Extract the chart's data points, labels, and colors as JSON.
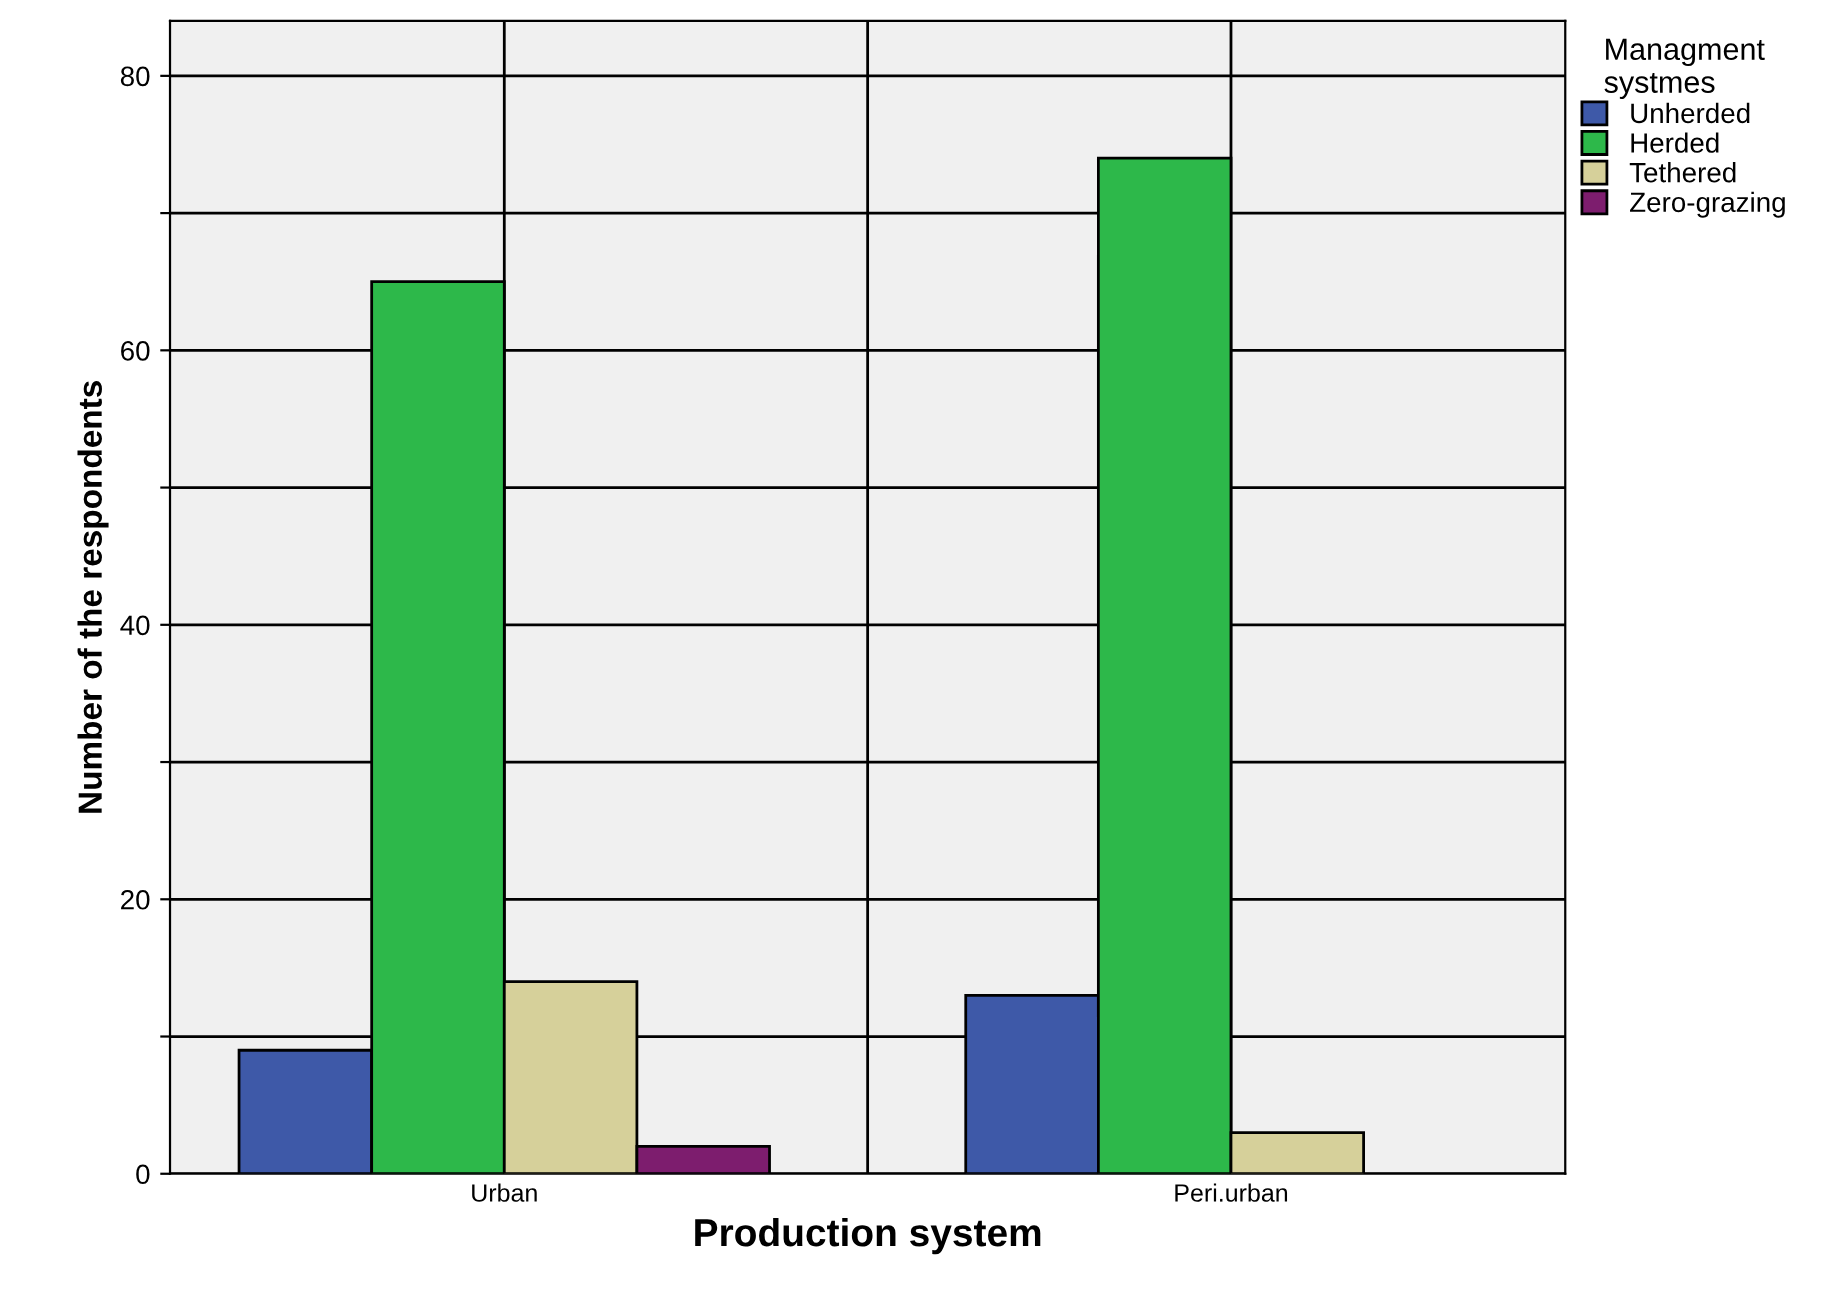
{
  "chart_data": {
    "type": "bar",
    "xlabel": "Production system",
    "ylabel": "Number of the respondents",
    "legend_title": "Managment systmes",
    "categories": [
      "Urban",
      "Peri.urban"
    ],
    "series": [
      {
        "name": "Unherded",
        "color": "#3e59a8",
        "values": [
          9,
          13
        ]
      },
      {
        "name": "Herded",
        "color": "#2db84a",
        "values": [
          65,
          74
        ]
      },
      {
        "name": "Tethered",
        "color": "#d6d09a",
        "values": [
          14,
          3
        ]
      },
      {
        "name": "Zero-grazing",
        "color": "#7d1d6e",
        "values": [
          2,
          null
        ]
      }
    ],
    "ylim": [
      0,
      84
    ],
    "yticks": [
      0,
      {
        "value": 10,
        "label": null
      },
      20,
      {
        "value": 30,
        "label": null
      },
      40,
      {
        "value": 50,
        "label": null
      },
      60,
      {
        "value": 70,
        "label": null
      },
      80
    ],
    "grid": true,
    "legend": "right"
  }
}
